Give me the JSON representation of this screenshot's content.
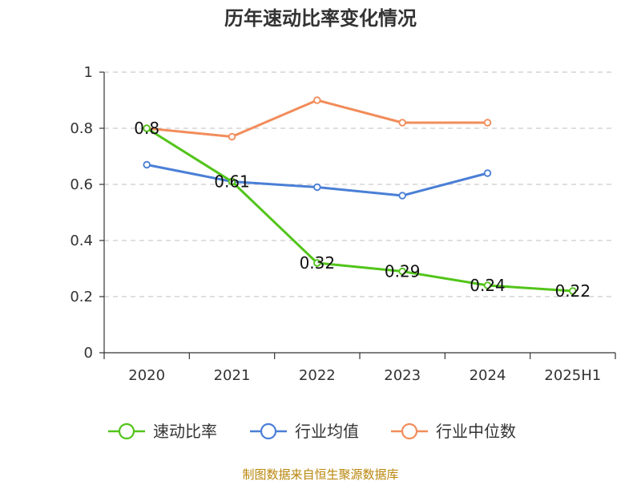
{
  "chart_data": {
    "type": "line",
    "title": "历年速动比率变化情况",
    "categories": [
      "2020",
      "2021",
      "2022",
      "2023",
      "2024",
      "2025H1"
    ],
    "ylim": [
      0,
      1
    ],
    "yticks": [
      "0",
      "0.2",
      "0.4",
      "0.6",
      "0.8",
      "1"
    ],
    "grid": true,
    "legend_position": "bottom",
    "series": [
      {
        "name": "速动比率",
        "color": "#52c41a",
        "values": [
          0.8,
          0.61,
          0.32,
          0.29,
          0.24,
          0.22
        ],
        "labels": [
          "0.8",
          "0.61",
          "0.32",
          "0.29",
          "0.24",
          "0.22"
        ]
      },
      {
        "name": "行业均值",
        "color": "#4a7fd6",
        "values": [
          0.67,
          0.61,
          0.59,
          0.56,
          0.64,
          null
        ]
      },
      {
        "name": "行业中位数",
        "color": "#f28c5a",
        "values": [
          0.8,
          0.77,
          0.9,
          0.82,
          0.82,
          null
        ]
      }
    ]
  },
  "source_text": "制图数据来自恒生聚源数据库"
}
